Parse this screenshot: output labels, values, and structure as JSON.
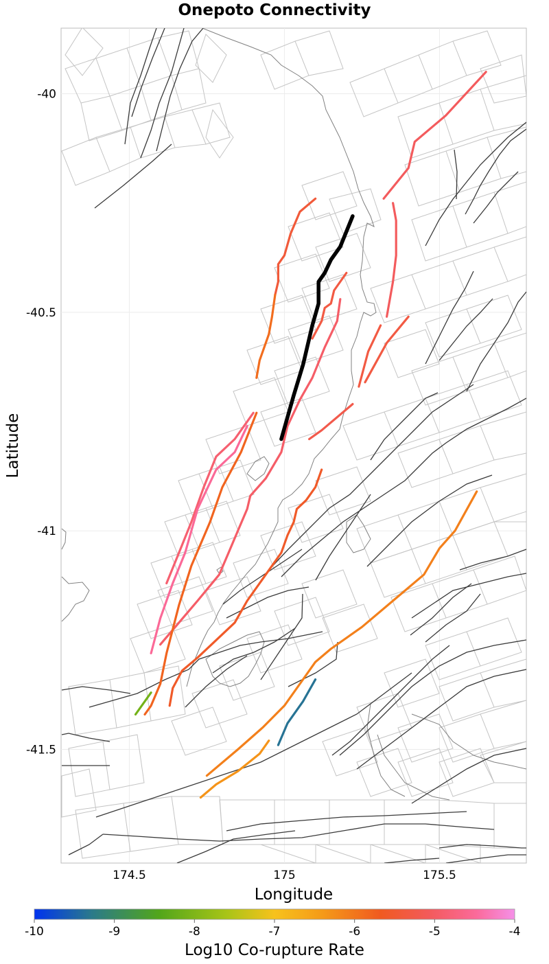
{
  "title": "Onepoto Connectivity",
  "x_axis": {
    "label": "Longitude",
    "ticks": [
      "174.5",
      "175",
      "175.5"
    ],
    "tick_values": [
      174.5,
      175.0,
      175.5
    ],
    "range": [
      174.28,
      175.78
    ]
  },
  "y_axis": {
    "label": "Latitude",
    "ticks": [
      "-40",
      "-40.5",
      "-41",
      "-41.5"
    ],
    "tick_values": [
      -40.0,
      -40.5,
      -41.0,
      -41.5
    ],
    "range": [
      -41.76,
      -39.85
    ]
  },
  "colorbar": {
    "label": "Log10 Co-rupture Rate",
    "ticks": [
      "-10",
      "-9",
      "-8",
      "-7",
      "-6",
      "-5",
      "-4"
    ],
    "min": -10,
    "max": -4,
    "colors": [
      "#0033ee",
      "#2b7a8a",
      "#52a61a",
      "#a8c418",
      "#f7c21c",
      "#f59a18",
      "#f05a20",
      "#f35a5a",
      "#fb6a9a",
      "#f590e8"
    ]
  },
  "colors": {
    "selected_fault": "#000000",
    "background_faults": "#3a3a3a",
    "fault_patches": "#c4c4c4",
    "coastline": "#808080"
  },
  "grid": "on",
  "chart_data": {
    "type": "map",
    "title": "Onepoto Connectivity",
    "xlabel": "Longitude",
    "ylabel": "Latitude",
    "xlim": [
      174.28,
      175.78
    ],
    "ylim": [
      -41.76,
      -39.85
    ],
    "selected_fault": {
      "name": "Onepoto",
      "path": [
        [
          175.22,
          -40.28
        ],
        [
          175.18,
          -40.35
        ],
        [
          175.15,
          -40.38
        ],
        [
          175.13,
          -40.41
        ],
        [
          175.11,
          -40.43
        ],
        [
          175.11,
          -40.48
        ],
        [
          175.09,
          -40.53
        ],
        [
          175.06,
          -40.62
        ],
        [
          175.03,
          -40.69
        ],
        [
          174.99,
          -40.79
        ]
      ]
    },
    "corupture_faults": [
      {
        "log10_rate": -5.3,
        "path": [
          [
            175.65,
            -39.95
          ],
          [
            175.52,
            -40.05
          ],
          [
            175.42,
            -40.11
          ],
          [
            175.4,
            -40.17
          ],
          [
            175.32,
            -40.24
          ]
        ]
      },
      {
        "log10_rate": -5.3,
        "path": [
          [
            175.35,
            -40.25
          ],
          [
            175.36,
            -40.29
          ],
          [
            175.36,
            -40.37
          ],
          [
            175.35,
            -40.43
          ],
          [
            175.33,
            -40.51
          ]
        ]
      },
      {
        "log10_rate": -5.6,
        "path": [
          [
            175.4,
            -40.51
          ],
          [
            175.33,
            -40.57
          ],
          [
            175.26,
            -40.66
          ]
        ]
      },
      {
        "log10_rate": -5.6,
        "path": [
          [
            175.31,
            -40.53
          ],
          [
            175.27,
            -40.59
          ],
          [
            175.24,
            -40.67
          ]
        ]
      },
      {
        "log10_rate": -5.5,
        "path": [
          [
            175.22,
            -40.71
          ],
          [
            175.12,
            -40.77
          ],
          [
            175.08,
            -40.79
          ]
        ]
      },
      {
        "log10_rate": -5.7,
        "path": [
          [
            175.1,
            -40.24
          ],
          [
            175.05,
            -40.27
          ],
          [
            175.02,
            -40.32
          ],
          [
            175.0,
            -40.37
          ],
          [
            174.98,
            -40.39
          ],
          [
            174.98,
            -40.43
          ],
          [
            174.97,
            -40.46
          ]
        ]
      },
      {
        "log10_rate": -6.2,
        "path": [
          [
            174.97,
            -40.46
          ],
          [
            174.96,
            -40.51
          ],
          [
            174.95,
            -40.55
          ],
          [
            174.92,
            -40.61
          ],
          [
            174.91,
            -40.65
          ]
        ]
      },
      {
        "log10_rate": -5.6,
        "path": [
          [
            175.2,
            -40.41
          ],
          [
            175.16,
            -40.45
          ],
          [
            175.15,
            -40.48
          ],
          [
            175.13,
            -40.49
          ],
          [
            175.12,
            -40.52
          ],
          [
            175.09,
            -40.56
          ]
        ]
      },
      {
        "log10_rate": -5.2,
        "path": [
          [
            175.18,
            -40.47
          ],
          [
            175.17,
            -40.52
          ],
          [
            175.13,
            -40.58
          ],
          [
            175.09,
            -40.65
          ],
          [
            175.05,
            -40.7
          ],
          [
            175.01,
            -40.76
          ],
          [
            174.99,
            -40.82
          ],
          [
            174.94,
            -40.88
          ],
          [
            174.89,
            -40.92
          ],
          [
            174.88,
            -40.95
          ],
          [
            174.85,
            -41.0
          ],
          [
            174.82,
            -41.05
          ],
          [
            174.79,
            -41.1
          ],
          [
            174.72,
            -41.16
          ],
          [
            174.66,
            -41.21
          ],
          [
            174.6,
            -41.26
          ]
        ]
      },
      {
        "log10_rate": -5.9,
        "path": [
          [
            175.12,
            -40.86
          ],
          [
            175.1,
            -40.9
          ],
          [
            175.07,
            -40.93
          ],
          [
            175.04,
            -40.95
          ],
          [
            175.03,
            -40.98
          ],
          [
            175.01,
            -41.01
          ],
          [
            174.99,
            -41.05
          ],
          [
            174.97,
            -41.07
          ],
          [
            174.94,
            -41.1
          ],
          [
            174.92,
            -41.12
          ],
          [
            174.88,
            -41.16
          ],
          [
            174.84,
            -41.21
          ],
          [
            174.78,
            -41.25
          ],
          [
            174.72,
            -41.29
          ],
          [
            174.67,
            -41.32
          ],
          [
            174.64,
            -41.36
          ],
          [
            174.63,
            -41.4
          ]
        ]
      },
      {
        "log10_rate": -5.1,
        "path": [
          [
            174.9,
            -40.73
          ],
          [
            174.84,
            -40.79
          ],
          [
            174.78,
            -40.83
          ],
          [
            174.74,
            -40.9
          ],
          [
            174.7,
            -40.98
          ],
          [
            174.66,
            -41.05
          ],
          [
            174.62,
            -41.12
          ]
        ]
      },
      {
        "log10_rate": -4.7,
        "path": [
          [
            174.88,
            -40.76
          ],
          [
            174.84,
            -40.82
          ],
          [
            174.78,
            -40.86
          ],
          [
            174.72,
            -40.95
          ],
          [
            174.68,
            -41.05
          ],
          [
            174.64,
            -41.12
          ],
          [
            174.6,
            -41.2
          ],
          [
            174.57,
            -41.28
          ]
        ]
      },
      {
        "log10_rate": -6.1,
        "path": [
          [
            174.91,
            -40.73
          ],
          [
            174.86,
            -40.82
          ],
          [
            174.8,
            -40.9
          ],
          [
            174.76,
            -40.98
          ],
          [
            174.7,
            -41.08
          ],
          [
            174.66,
            -41.17
          ],
          [
            174.62,
            -41.28
          ],
          [
            174.6,
            -41.35
          ],
          [
            174.57,
            -41.4
          ],
          [
            174.55,
            -41.42
          ]
        ]
      },
      {
        "log10_rate": -8.4,
        "path": [
          [
            174.57,
            -41.37
          ],
          [
            174.52,
            -41.42
          ]
        ]
      },
      {
        "log10_rate": -6.4,
        "path": [
          [
            175.62,
            -40.91
          ],
          [
            175.55,
            -41.0
          ],
          [
            175.5,
            -41.04
          ],
          [
            175.45,
            -41.1
          ],
          [
            175.35,
            -41.16
          ],
          [
            175.25,
            -41.22
          ],
          [
            175.15,
            -41.27
          ],
          [
            175.1,
            -41.3
          ],
          [
            175.05,
            -41.35
          ],
          [
            175.0,
            -41.4
          ],
          [
            174.93,
            -41.45
          ],
          [
            174.85,
            -41.5
          ],
          [
            174.75,
            -41.56
          ]
        ]
      },
      {
        "log10_rate": -6.6,
        "path": [
          [
            174.95,
            -41.48
          ],
          [
            174.92,
            -41.51
          ],
          [
            174.85,
            -41.55
          ],
          [
            174.78,
            -41.58
          ],
          [
            174.73,
            -41.61
          ]
        ]
      },
      {
        "log10_rate": -9.4,
        "path": [
          [
            175.1,
            -41.34
          ],
          [
            175.06,
            -41.39
          ],
          [
            175.01,
            -41.44
          ],
          [
            174.98,
            -41.49
          ]
        ]
      }
    ]
  }
}
